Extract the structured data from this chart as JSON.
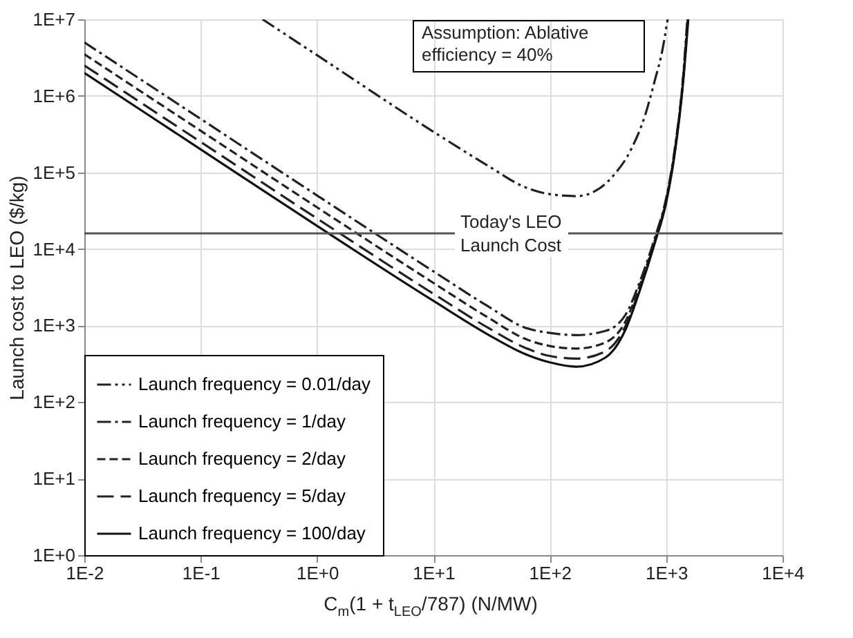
{
  "chart_data": {
    "type": "line",
    "xlabel": "C$_{m}$(1 + t$_{LEO}$/787)  (N/MW)",
    "ylabel": "Launch cost to LEO ($/kg)",
    "log": "xy",
    "grid": true,
    "legend": "bottom left",
    "xlim": [
      0.01,
      10000
    ],
    "ylim": [
      1,
      10000000
    ],
    "xticks": [
      {
        "value": 0.01,
        "label": "1E-2"
      },
      {
        "value": 0.1,
        "label": "1E-1"
      },
      {
        "value": 1,
        "label": "1E+0"
      },
      {
        "value": 10,
        "label": "1E+1"
      },
      {
        "value": 100,
        "label": "1E+2"
      },
      {
        "value": 1000,
        "label": "1E+3"
      },
      {
        "value": 10000,
        "label": "1E+4"
      }
    ],
    "yticks": [
      {
        "value": 1,
        "label": "1E+0"
      },
      {
        "value": 10,
        "label": "1E+1"
      },
      {
        "value": 100,
        "label": "1E+2"
      },
      {
        "value": 1000,
        "label": "1E+3"
      },
      {
        "value": 10000,
        "label": "1E+4"
      },
      {
        "value": 100000,
        "label": "1E+5"
      },
      {
        "value": 1000000,
        "label": "1E+6"
      },
      {
        "value": 10000000,
        "label": "1E+7"
      }
    ],
    "ref_lines": [
      {
        "axis": "y",
        "value": 16000,
        "label": "Today's LEO Launch Cost",
        "color": "#555555"
      }
    ],
    "annotations": [
      "Assumption: Ablative efficiency = 40%"
    ],
    "series": [
      {
        "name": "Launch frequency = 0.01/day",
        "color": "#222222",
        "line_style": "dashdotdot",
        "x": [
          0.34,
          1,
          10,
          30,
          60,
          100,
          170,
          250,
          350,
          500,
          660,
          800,
          930,
          1030
        ],
        "values": [
          10000000,
          3400000,
          340000,
          120000,
          65000,
          52000,
          49000,
          58000,
          90000,
          200000,
          560000,
          1600000,
          4000000,
          10000000
        ]
      },
      {
        "name": "Launch frequency = 1/day",
        "color": "#222222",
        "line_style": "dashdot",
        "x": [
          0.01,
          0.1,
          1,
          10,
          30,
          60,
          100,
          170,
          300,
          450,
          600,
          800,
          1000,
          1200,
          1400,
          1520
        ],
        "values": [
          5000000,
          500000,
          50000,
          5100,
          1750,
          950,
          800,
          750,
          850,
          1400,
          3900,
          14000,
          46000,
          230000,
          1800000,
          10000000
        ]
      },
      {
        "name": "Launch frequency = 2/day",
        "color": "#222222",
        "line_style": "dashed",
        "x": [
          0.01,
          0.1,
          1,
          10,
          30,
          60,
          100,
          170,
          300,
          450,
          600,
          800,
          1000,
          1200,
          1400,
          1530
        ],
        "values": [
          3500000,
          350000,
          35000,
          3600,
          1250,
          680,
          540,
          500,
          600,
          1150,
          3500,
          13000,
          44000,
          220000,
          1700000,
          10000000
        ]
      },
      {
        "name": "Launch frequency = 5/day",
        "color": "#222222",
        "line_style": "longdash",
        "x": [
          0.01,
          0.1,
          1,
          10,
          30,
          60,
          100,
          170,
          300,
          450,
          600,
          800,
          1000,
          1200,
          1400,
          1540
        ],
        "values": [
          2500000,
          250000,
          25000,
          2600,
          920,
          520,
          400,
          370,
          460,
          1000,
          3200,
          12500,
          42000,
          210000,
          1600000,
          10000000
        ]
      },
      {
        "name": "Launch frequency = 100/day",
        "color": "#111111",
        "line_style": "solid",
        "x": [
          0.01,
          0.1,
          1,
          10,
          30,
          60,
          100,
          170,
          300,
          450,
          600,
          800,
          1000,
          1200,
          1400,
          1550
        ],
        "values": [
          2000000,
          200000,
          20000,
          2100,
          750,
          430,
          330,
          290,
          380,
          900,
          3000,
          12000,
          40000,
          200000,
          1500000,
          10000000
        ]
      }
    ]
  }
}
